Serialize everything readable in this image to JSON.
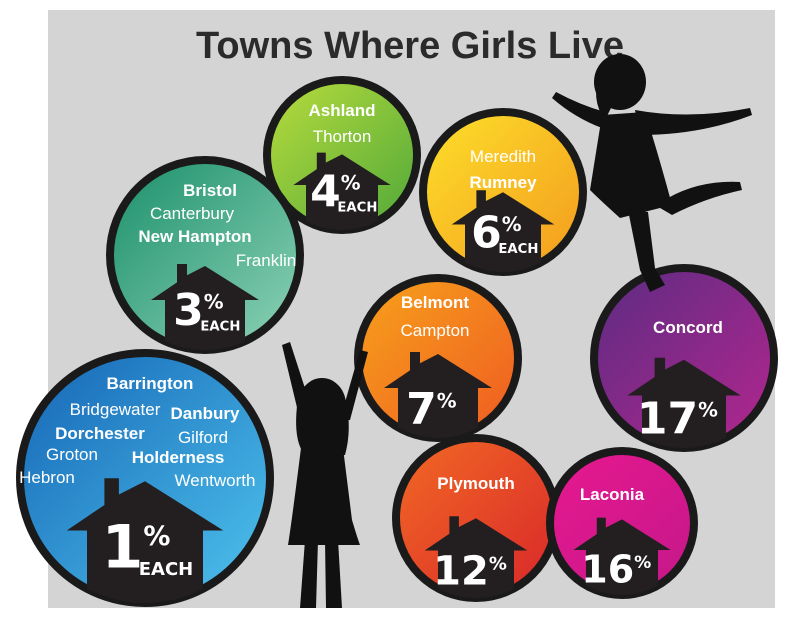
{
  "title": "Towns Where Girls Live",
  "unit": "%",
  "each_label": "EACH",
  "groups": [
    {
      "towns": [
        {
          "name": "Ashland",
          "bold": true
        },
        {
          "name": "Thorton",
          "bold": false
        }
      ],
      "percent": 4,
      "each": true,
      "colors": [
        "#b9dc3c",
        "#4fa83a"
      ]
    },
    {
      "towns": [
        {
          "name": "Bristol",
          "bold": true
        },
        {
          "name": "Canterbury",
          "bold": false
        },
        {
          "name": "New Hampton",
          "bold": true
        },
        {
          "name": "Franklin",
          "bold": false
        }
      ],
      "percent": 3,
      "each": true,
      "colors": [
        "#1a8f6a",
        "#8fd3b8"
      ]
    },
    {
      "towns": [
        {
          "name": "Meredith",
          "bold": false
        },
        {
          "name": "Rumney",
          "bold": true
        }
      ],
      "percent": 6,
      "each": true,
      "colors": [
        "#fde02a",
        "#f39a1e"
      ]
    },
    {
      "towns": [
        {
          "name": "Belmont",
          "bold": true
        },
        {
          "name": "Campton",
          "bold": false
        }
      ],
      "percent": 7,
      "each": false,
      "colors": [
        "#f7a21b",
        "#ef5a22"
      ]
    },
    {
      "towns": [
        {
          "name": "Concord",
          "bold": true
        }
      ],
      "percent": 17,
      "each": false,
      "colors": [
        "#5b2c83",
        "#b4268e"
      ]
    },
    {
      "towns": [
        {
          "name": "Barrington",
          "bold": true
        },
        {
          "name": "Bridgewater",
          "bold": false
        },
        {
          "name": "Danbury",
          "bold": true
        },
        {
          "name": "Dorchester",
          "bold": true
        },
        {
          "name": "Gilford",
          "bold": false
        },
        {
          "name": "Groton",
          "bold": false
        },
        {
          "name": "Holderness",
          "bold": true
        },
        {
          "name": "Hebron",
          "bold": false
        },
        {
          "name": "Wentworth",
          "bold": false
        }
      ],
      "percent": 1,
      "each": true,
      "colors": [
        "#1565b5",
        "#4fc4ee"
      ]
    },
    {
      "towns": [
        {
          "name": "Plymouth",
          "bold": true
        }
      ],
      "percent": 12,
      "each": false,
      "colors": [
        "#f26a24",
        "#d8262a"
      ]
    },
    {
      "towns": [
        {
          "name": "Laconia",
          "bold": true
        }
      ],
      "percent": 16,
      "each": false,
      "colors": [
        "#e8188f",
        "#c3188a"
      ]
    }
  ]
}
